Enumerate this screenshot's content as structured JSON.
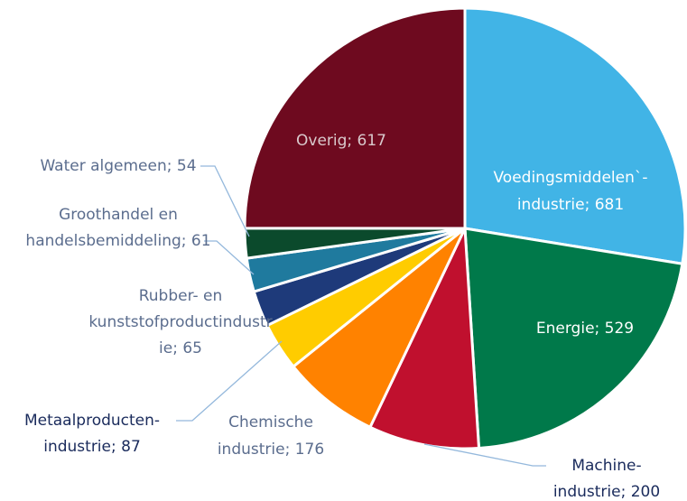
{
  "chart_data": {
    "type": "pie",
    "categories": [
      "Voedingsmiddelen`-industrie",
      "Energie",
      "Machine-industrie",
      "Chemische industrie",
      "Metaalproducten-industrie",
      "Rubber- en kunststofproductindustrie",
      "Groothandel en handelsbemiddeling",
      "Water algemeen",
      "Overig"
    ],
    "values": [
      681,
      529,
      200,
      176,
      87,
      65,
      61,
      54,
      617
    ],
    "value_labels": [
      [
        "Voedingsmiddelen`-",
        "industrie; 681"
      ],
      [
        "Energie; 529"
      ],
      [
        "Machine-",
        "industrie; 200"
      ],
      [
        "Chemische",
        "industrie; 176"
      ],
      [
        "Metaalproducten-",
        "industrie; 87"
      ],
      [
        "Rubber- en",
        "kunststofproductindustr",
        "ie; 65"
      ],
      [
        "Groothandel en",
        "handelsbemiddeling; 61"
      ],
      [
        "Water algemeen; 54"
      ],
      [
        "Overig; 617"
      ]
    ],
    "colors": [
      "#41b4e6",
      "#00794a",
      "#c0102e",
      "#ff8200",
      "#ffcc00",
      "#1e3a7a",
      "#1f7a9e",
      "#0b4a2c",
      "#6e0a1f"
    ]
  }
}
